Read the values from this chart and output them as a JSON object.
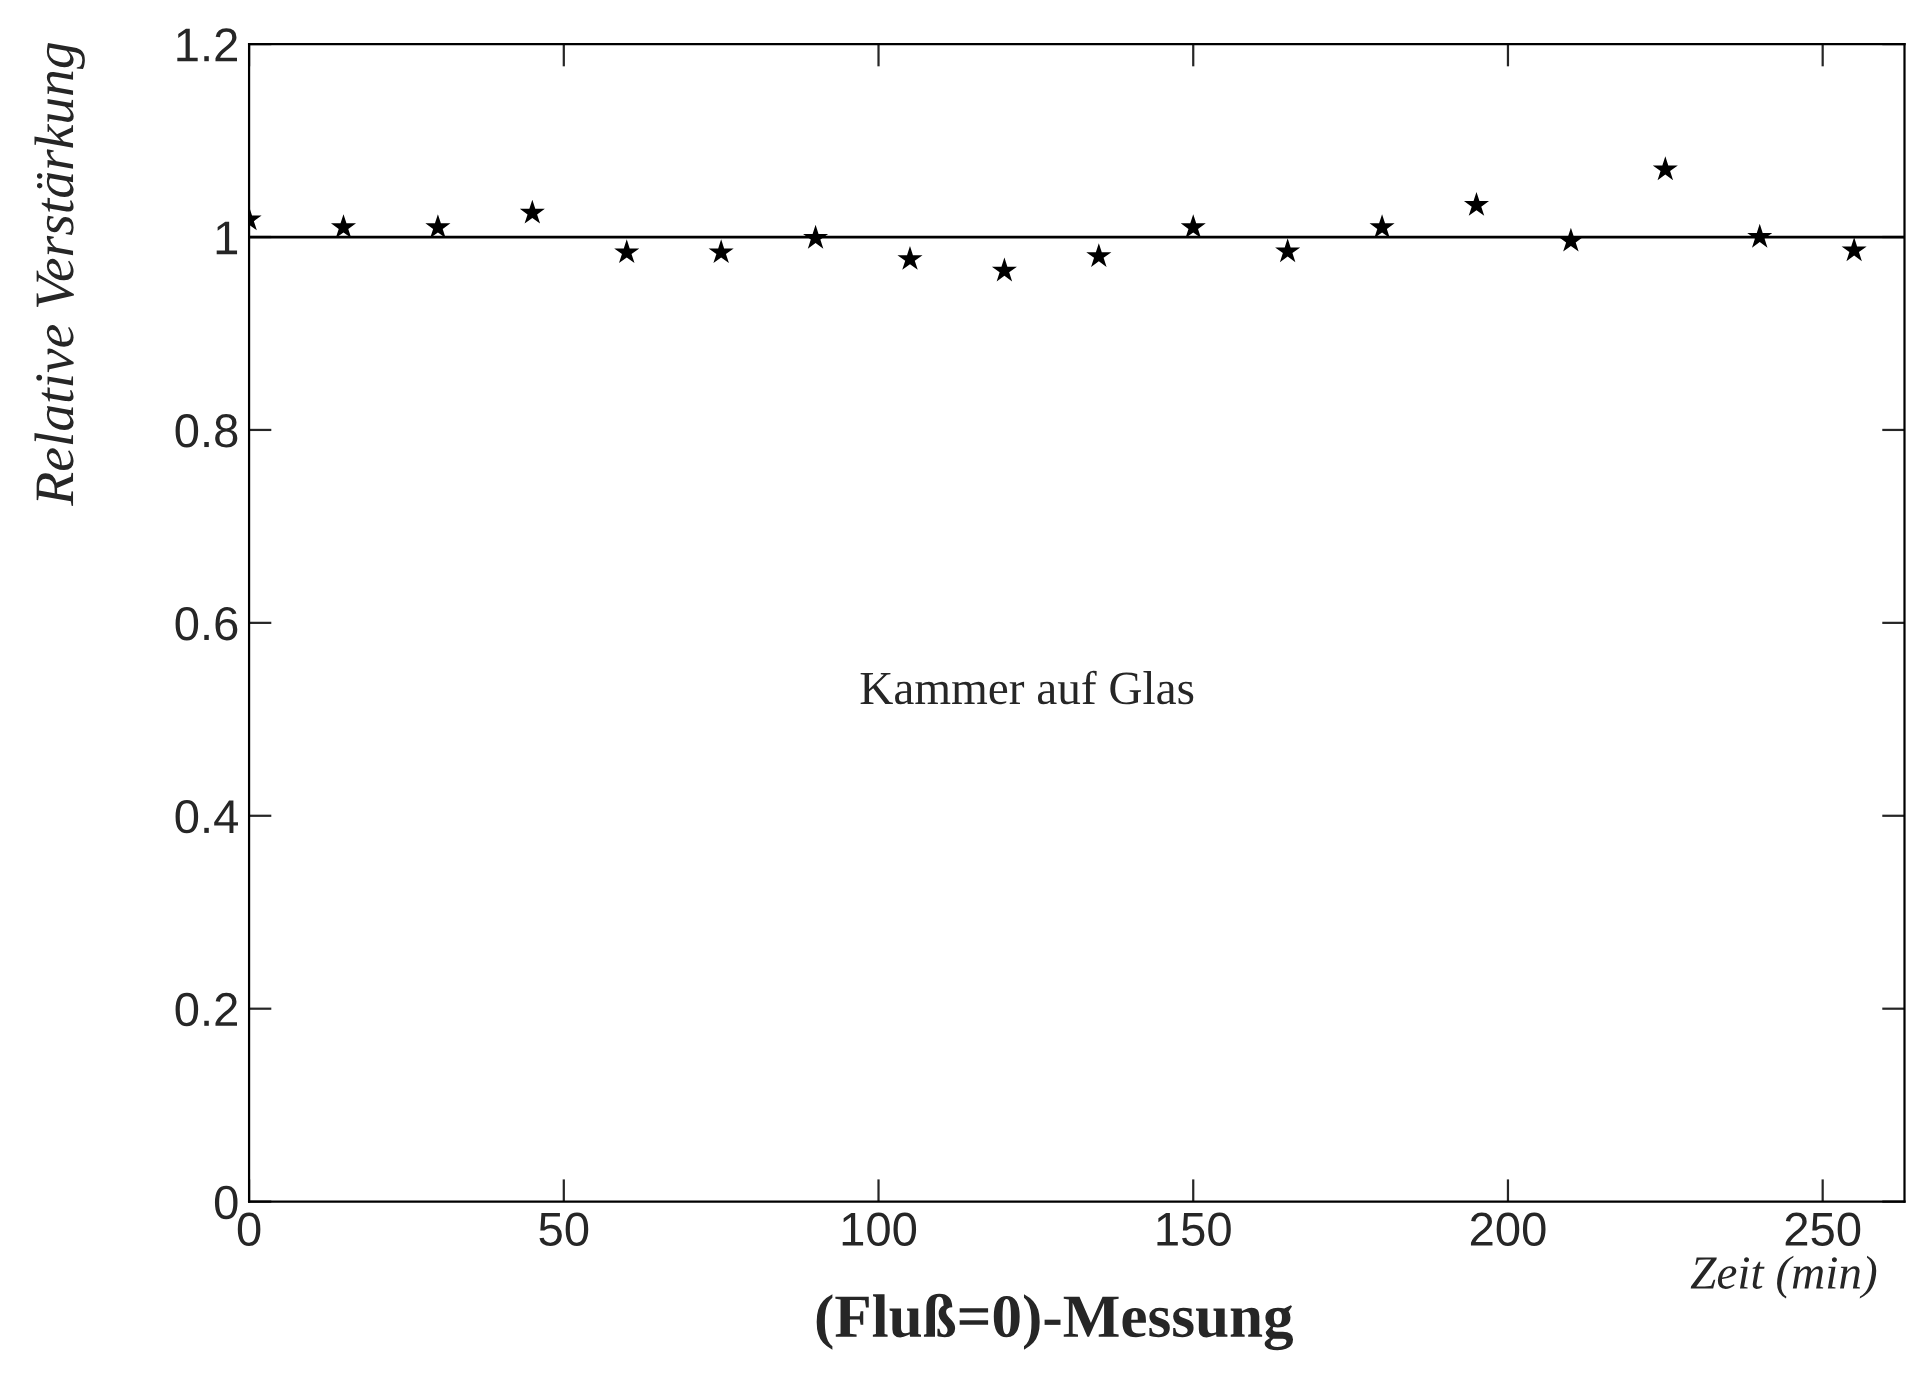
{
  "chart_data": {
    "type": "scatter",
    "title": "(Fluß=0)-Messung",
    "xlabel": "Zeit (min)",
    "ylabel": "Relative Verstärkung",
    "annotations": [
      "Kammer auf Glas"
    ],
    "x": [
      0,
      15,
      30,
      45,
      60,
      75,
      90,
      105,
      120,
      135,
      150,
      165,
      180,
      195,
      210,
      225,
      240,
      255
    ],
    "series": [
      {
        "color": "#000000",
        "values": [
          1.018,
          1.01,
          1.01,
          1.025,
          0.984,
          0.984,
          0.999,
          0.977,
          0.965,
          0.98,
          1.01,
          0.985,
          1.01,
          1.033,
          0.996,
          1.07,
          1.0,
          0.986
        ]
      }
    ],
    "xlim": [
      0,
      263
    ],
    "ylim": [
      0,
      1.2
    ],
    "xticks": [
      0,
      50,
      100,
      150,
      200,
      250
    ],
    "yticks": [
      0,
      0.2,
      0.4,
      0.6,
      0.8,
      1,
      1.2
    ],
    "ref_lines": [
      {
        "axis": "y",
        "value": 1,
        "color": "#000000"
      }
    ],
    "marker": "star",
    "grid": false,
    "legend": false
  }
}
